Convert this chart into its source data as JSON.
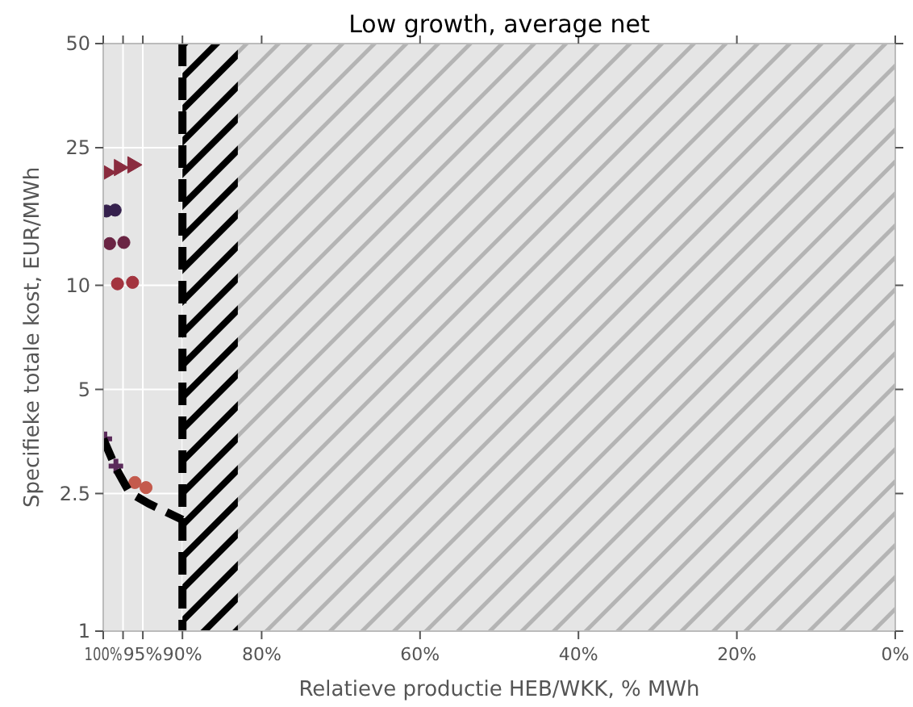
{
  "chart_data": {
    "type": "scatter",
    "title": "Low growth, average net",
    "xlabel": "Relatieve productie HEB/WKK, %  MWh",
    "ylabel": "Specifieke totale kost, EUR/MWh",
    "log": "y",
    "grid": true,
    "xlim": [
      100,
      0
    ],
    "xticks": [
      {
        "value": 100,
        "label": "100%"
      },
      {
        "value": 97.5,
        "label": null
      },
      {
        "value": 95,
        "label": "95%"
      },
      {
        "value": 90,
        "label": "90%"
      },
      {
        "value": 80,
        "label": "80%"
      },
      {
        "value": 60,
        "label": "60%"
      },
      {
        "value": 40,
        "label": "40%"
      },
      {
        "value": 20,
        "label": "20%"
      },
      {
        "value": 0,
        "label": "0%"
      }
    ],
    "ylim": [
      1,
      50
    ],
    "yticks": [
      1,
      2.5,
      5,
      10,
      25,
      50
    ],
    "bands": [
      {
        "axis": "x",
        "from": 90,
        "to": 83,
        "color": "#000000"
      },
      {
        "axis": "x",
        "from": 83,
        "to": 0,
        "color": "#b4b4b4"
      }
    ],
    "ref_lines": [
      {
        "axis": "x",
        "value": 90,
        "color": "#000000",
        "line_style": "dashed"
      }
    ],
    "series": [
      {
        "marker": "triangle",
        "color": "#8a2b3e",
        "x": [
          99.6,
          98,
          96.3
        ],
        "values": [
          21.2,
          21.9,
          22.3
        ]
      },
      {
        "marker": "circle",
        "color": "#35204d",
        "x": [
          99.6,
          98.5
        ],
        "values": [
          16.4,
          16.5
        ]
      },
      {
        "marker": "circle",
        "color": "#6a2443",
        "x": [
          99.2,
          97.4
        ],
        "values": [
          13.2,
          13.3
        ]
      },
      {
        "marker": "circle",
        "color": "#a3343f",
        "x": [
          98.2,
          96.3
        ],
        "values": [
          10.1,
          10.2
        ]
      },
      {
        "marker": "cross",
        "color": "#5a2a5a",
        "x": [
          99.8,
          98.4
        ],
        "values": [
          3.6,
          3.0
        ]
      },
      {
        "marker": "circle",
        "color": "#c45a4c",
        "x": [
          96,
          94.6
        ],
        "values": [
          2.69,
          2.6
        ]
      },
      {
        "type": "line",
        "line_style": "dashed",
        "marker": "none",
        "color": "#000000",
        "x": [
          100,
          98.4,
          96.7,
          94.3,
          90
        ],
        "values": [
          3.6,
          2.96,
          2.52,
          2.34,
          2.1
        ]
      }
    ]
  }
}
